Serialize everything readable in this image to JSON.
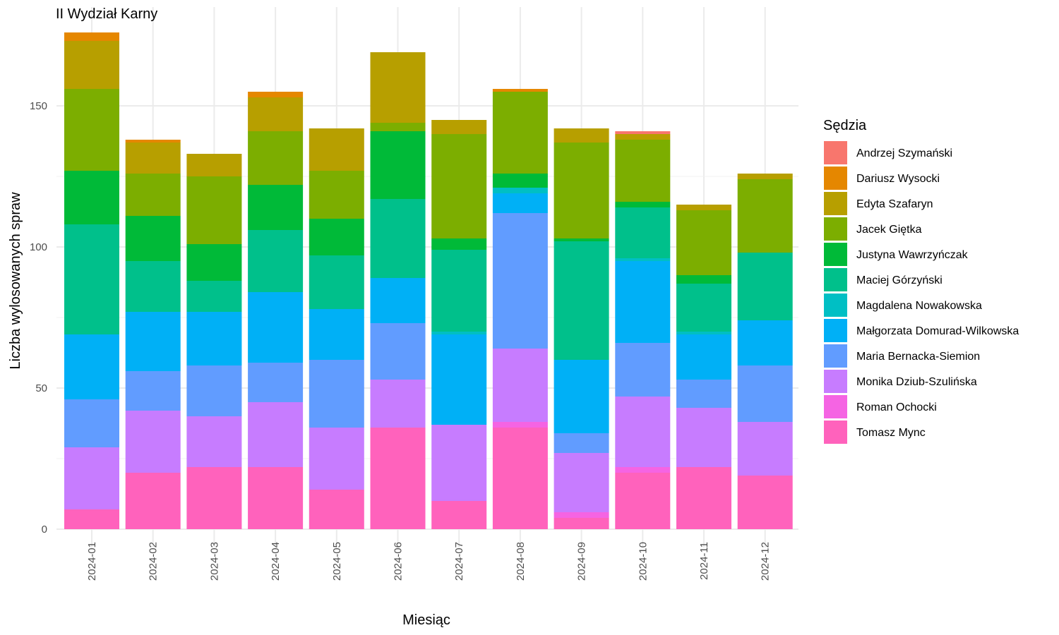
{
  "chart_data": {
    "type": "bar",
    "stacked": true,
    "title": "II Wydział Karny",
    "xlabel": "Miesiąc",
    "ylabel": "Liczba wylosowanych spraw",
    "ylim": [
      0,
      176
    ],
    "yticks": [
      0,
      50,
      100,
      150
    ],
    "grid": true,
    "legend_position": "right",
    "legend_title": "Sędzia",
    "categories": [
      "2024-01",
      "2024-02",
      "2024-03",
      "2024-04",
      "2024-05",
      "2024-06",
      "2024-07",
      "2024-08",
      "2024-09",
      "2024-10",
      "2024-11",
      "2024-12"
    ],
    "series": [
      {
        "name": "Tomasz Mync",
        "color": "#FF62BC",
        "values": [
          7,
          20,
          22,
          22,
          14,
          36,
          10,
          36,
          4,
          20,
          22,
          19
        ]
      },
      {
        "name": "Roman Ochocki",
        "color": "#F564E3",
        "values": [
          0,
          0,
          0,
          0,
          0,
          0,
          0,
          2,
          2,
          2,
          0,
          0
        ]
      },
      {
        "name": "Monika Dziub-Szulińska",
        "color": "#C77CFF",
        "values": [
          22,
          22,
          18,
          23,
          22,
          17,
          27,
          26,
          21,
          25,
          21,
          19
        ]
      },
      {
        "name": "Maria Bernacka-Siemion",
        "color": "#619CFF",
        "values": [
          17,
          14,
          18,
          14,
          24,
          20,
          0,
          48,
          7,
          19,
          10,
          20
        ]
      },
      {
        "name": "Małgorzata Domurad-Wilkowska",
        "color": "#00B0F6",
        "values": [
          23,
          21,
          19,
          25,
          18,
          16,
          32,
          7,
          26,
          29,
          16,
          16
        ]
      },
      {
        "name": "Magdalena Nowakowska",
        "color": "#00BFC4",
        "values": [
          0,
          0,
          0,
          0,
          0,
          0,
          1,
          2,
          0,
          1,
          1,
          0
        ]
      },
      {
        "name": "Maciej Górzyński",
        "color": "#00C08B",
        "values": [
          39,
          18,
          11,
          22,
          19,
          28,
          29,
          0,
          42,
          18,
          17,
          24
        ]
      },
      {
        "name": "Justyna Wawrzyńczak",
        "color": "#00BA38",
        "values": [
          19,
          16,
          13,
          16,
          13,
          24,
          4,
          5,
          1,
          2,
          3,
          0
        ]
      },
      {
        "name": "Jacek Giętka",
        "color": "#7CAE00",
        "values": [
          29,
          15,
          24,
          19,
          17,
          3,
          37,
          29,
          34,
          22,
          23,
          26
        ]
      },
      {
        "name": "Edyta Szafaryn",
        "color": "#B79F00",
        "values": [
          17,
          11,
          8,
          12,
          15,
          25,
          5,
          0,
          5,
          2,
          2,
          2
        ]
      },
      {
        "name": "Dariusz Wysocki",
        "color": "#E58700",
        "values": [
          3,
          1,
          0,
          2,
          0,
          0,
          0,
          1,
          0,
          0,
          0,
          0
        ]
      },
      {
        "name": "Andrzej Szymański",
        "color": "#F8766D",
        "values": [
          0,
          0,
          0,
          0,
          0,
          0,
          0,
          0,
          0,
          1,
          0,
          0
        ]
      }
    ],
    "legend_order": [
      "Andrzej Szymański",
      "Dariusz Wysocki",
      "Edyta Szafaryn",
      "Jacek Giętka",
      "Justyna Wawrzyńczak",
      "Maciej Górzyński",
      "Magdalena Nowakowska",
      "Małgorzata Domurad-Wilkowska",
      "Maria Bernacka-Siemion",
      "Monika Dziub-Szulińska",
      "Roman Ochocki",
      "Tomasz Mync"
    ]
  }
}
